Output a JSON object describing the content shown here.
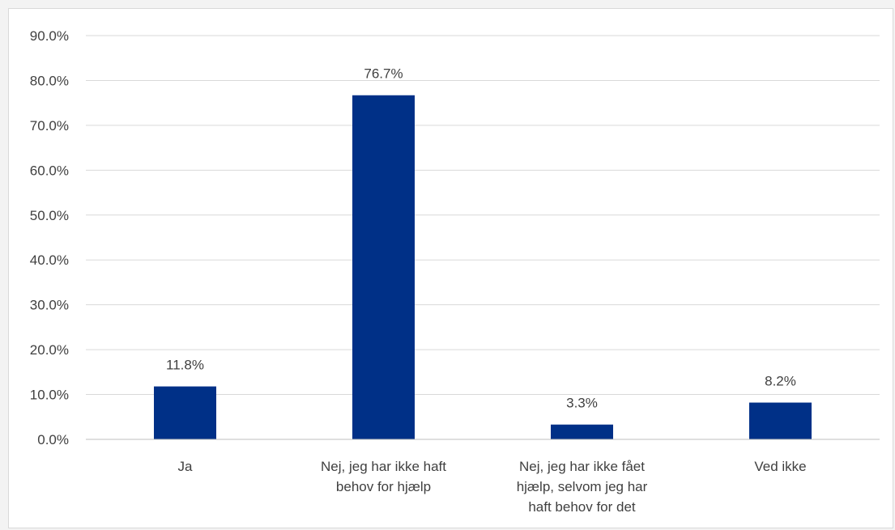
{
  "chart_data": {
    "type": "bar",
    "categories": [
      [
        "Ja"
      ],
      [
        "Nej, jeg har ikke haft",
        "behov for hjælp"
      ],
      [
        "Nej, jeg har ikke fået",
        "hjælp, selvom jeg har",
        "haft behov for det"
      ],
      [
        "Ved ikke"
      ]
    ],
    "values": [
      11.8,
      76.7,
      3.3,
      8.2
    ],
    "data_labels": [
      "11.8%",
      "76.7%",
      "3.3%",
      "8.2%"
    ],
    "ylim": [
      0,
      90
    ],
    "yticks": [
      0,
      10,
      20,
      30,
      40,
      50,
      60,
      70,
      80,
      90
    ],
    "ytick_labels": [
      "0.0%",
      "10.0%",
      "20.0%",
      "30.0%",
      "40.0%",
      "50.0%",
      "60.0%",
      "70.0%",
      "80.0%",
      "90.0%"
    ],
    "grid": true,
    "legend": "none",
    "bar_color": "#003087"
  }
}
